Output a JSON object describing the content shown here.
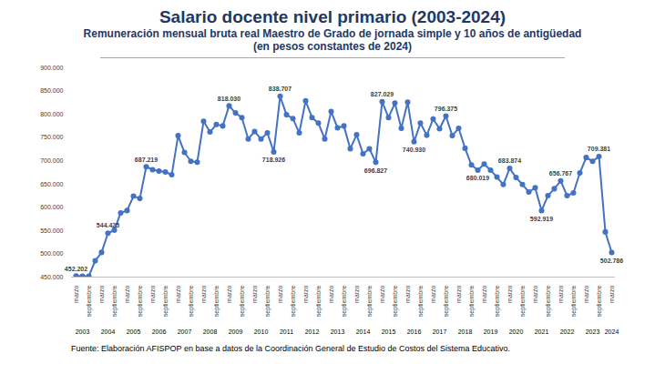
{
  "chart_data": {
    "type": "line",
    "title": "Salario docente nivel primario (2003-2024)",
    "subtitle": [
      "Remuneración mensual bruta real Maestro de Grado de jornada simple y 10 años de antigüedad",
      "(en pesos constantes de 2024)"
    ],
    "source": "Fuente: Elaboración AFISPOP en base a datos de la Coordinación General de Estudio de Costos del Sistema Educativo.",
    "categories": [
      "marzo",
      null,
      "septiembre",
      null,
      "marzo",
      null,
      "septiembre",
      null,
      "marzo",
      null,
      "septiembre",
      null,
      "marzo",
      null,
      "septiembre",
      null,
      "marzo",
      null,
      "septiembre",
      null,
      "marzo",
      null,
      "septiembre",
      null,
      "marzo",
      null,
      "septiembre",
      null,
      "marzo",
      null,
      "septiembre",
      null,
      "marzo",
      null,
      "septiembre",
      null,
      "marzo",
      null,
      "septiembre",
      null,
      "marzo",
      null,
      "septiembre",
      null,
      "marzo",
      null,
      "septiembre",
      null,
      "marzo",
      null,
      "septiembre",
      null,
      "marzo",
      null,
      "septiembre",
      null,
      "marzo",
      null,
      "septiembre",
      null,
      "marzo",
      null,
      "septiembre",
      null,
      "marzo",
      null,
      "septiembre",
      null,
      "marzo",
      null,
      "septiembre",
      null,
      "marzo",
      null,
      "septiembre",
      null,
      "marzo",
      null,
      "septiembre",
      null,
      "marzo",
      null,
      "septiembre",
      null,
      "marzo"
    ],
    "years": [
      null,
      "2003",
      null,
      null,
      null,
      "2004",
      null,
      null,
      null,
      "2005",
      null,
      null,
      null,
      "2006",
      null,
      null,
      null,
      "2007",
      null,
      null,
      null,
      "2008",
      null,
      null,
      null,
      "2009",
      null,
      null,
      null,
      "2010",
      null,
      null,
      null,
      "2011",
      null,
      null,
      null,
      "2012",
      null,
      null,
      null,
      "2013",
      null,
      null,
      null,
      "2014",
      null,
      null,
      null,
      "2015",
      null,
      null,
      null,
      "2016",
      null,
      null,
      null,
      "2017",
      null,
      null,
      null,
      "2018",
      null,
      null,
      null,
      "2019",
      null,
      null,
      null,
      "2020",
      null,
      null,
      null,
      "2021",
      null,
      null,
      null,
      "2022",
      null,
      null,
      null,
      "2023",
      null,
      null,
      "2024"
    ],
    "values": [
      452202,
      452000,
      452000,
      485000,
      503000,
      544425,
      551000,
      588000,
      593000,
      624000,
      619000,
      687219,
      681000,
      678000,
      676000,
      670000,
      754000,
      718000,
      699000,
      697000,
      785000,
      762000,
      778000,
      775000,
      818030,
      803000,
      793000,
      747000,
      763000,
      747000,
      760000,
      718926,
      838707,
      799000,
      791000,
      760000,
      829000,
      793000,
      781000,
      747000,
      806000,
      771000,
      775000,
      726000,
      756000,
      715000,
      726000,
      696827,
      827029,
      793000,
      824000,
      770000,
      826000,
      740930,
      781000,
      755000,
      790000,
      769000,
      796375,
      754000,
      770000,
      727000,
      691000,
      680019,
      693000,
      680000,
      665000,
      649000,
      683874,
      664000,
      649000,
      633000,
      642000,
      592919,
      625000,
      640000,
      656767,
      625000,
      631000,
      674000,
      707000,
      699000,
      709381,
      547000,
      502786
    ],
    "value_labels": [
      "452.202",
      null,
      null,
      null,
      null,
      "544.425",
      null,
      null,
      null,
      null,
      null,
      "687.219",
      null,
      null,
      null,
      null,
      null,
      null,
      null,
      null,
      null,
      null,
      null,
      null,
      "818.030",
      null,
      null,
      null,
      null,
      null,
      null,
      "718.926",
      "838.707",
      null,
      null,
      null,
      null,
      null,
      null,
      null,
      null,
      null,
      null,
      null,
      null,
      null,
      null,
      "696.827",
      "827.029",
      null,
      null,
      null,
      null,
      "740.930",
      null,
      null,
      null,
      null,
      "796.375",
      null,
      null,
      null,
      null,
      "680.019",
      null,
      null,
      null,
      null,
      "683.874",
      null,
      null,
      null,
      null,
      "592.919",
      null,
      null,
      "656.767",
      null,
      null,
      null,
      null,
      null,
      "709.381",
      null,
      "502.786"
    ],
    "data_labels": true,
    "color": "#4472c4",
    "marker": "circle",
    "line_style": "solid",
    "grid": false,
    "ylim": [
      450000,
      900000
    ],
    "yticks": [
      {
        "value": 450000,
        "label": "450.000"
      },
      {
        "value": 500000,
        "label": "500.000"
      },
      {
        "value": 550000,
        "label": "550.000"
      },
      {
        "value": 600000,
        "label": "600.000"
      },
      {
        "value": 650000,
        "label": "650.000"
      },
      {
        "value": 700000,
        "label": "700.000"
      },
      {
        "value": 750000,
        "label": "750.000"
      },
      {
        "value": 800000,
        "label": "800.000"
      },
      {
        "value": 850000,
        "label": "850.000"
      },
      {
        "value": 900000,
        "label": "900.000"
      }
    ]
  }
}
